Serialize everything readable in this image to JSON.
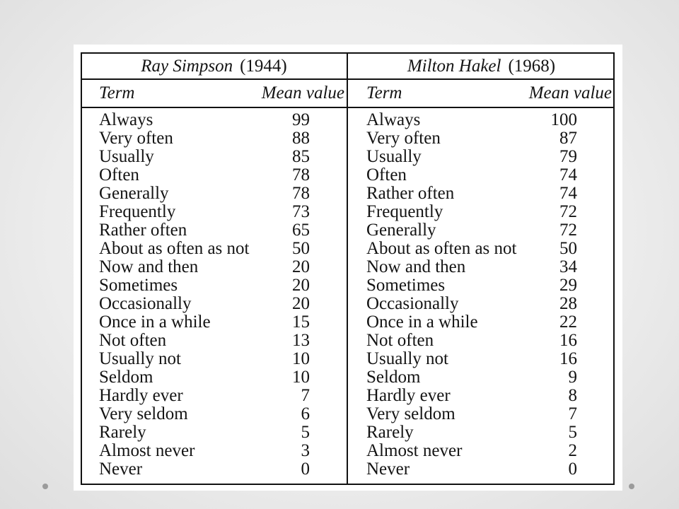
{
  "tables": [
    {
      "author": "Ray Simpson",
      "year": "(1944)",
      "term_header": "Term",
      "value_header": "Mean value",
      "rows": [
        {
          "term": "Always",
          "value": "99"
        },
        {
          "term": "Very often",
          "value": "88"
        },
        {
          "term": "Usually",
          "value": "85"
        },
        {
          "term": "Often",
          "value": "78"
        },
        {
          "term": "Generally",
          "value": "78"
        },
        {
          "term": "Frequently",
          "value": "73"
        },
        {
          "term": "Rather often",
          "value": "65"
        },
        {
          "term": "About as often as not",
          "value": "50"
        },
        {
          "term": "Now and then",
          "value": "20"
        },
        {
          "term": "Sometimes",
          "value": "20"
        },
        {
          "term": "Occasionally",
          "value": "20"
        },
        {
          "term": "Once in a while",
          "value": "15"
        },
        {
          "term": "Not often",
          "value": "13"
        },
        {
          "term": "Usually not",
          "value": "10"
        },
        {
          "term": "Seldom",
          "value": "10"
        },
        {
          "term": "Hardly ever",
          "value": "7"
        },
        {
          "term": "Very seldom",
          "value": "6"
        },
        {
          "term": "Rarely",
          "value": "5"
        },
        {
          "term": "Almost never",
          "value": "3"
        },
        {
          "term": "Never",
          "value": "0"
        }
      ]
    },
    {
      "author": "Milton Hakel",
      "year": "(1968)",
      "term_header": "Term",
      "value_header": "Mean value",
      "rows": [
        {
          "term": "Always",
          "value": "100"
        },
        {
          "term": "Very often",
          "value": "87"
        },
        {
          "term": "Usually",
          "value": "79"
        },
        {
          "term": "Often",
          "value": "74"
        },
        {
          "term": "Rather often",
          "value": "74"
        },
        {
          "term": "Frequently",
          "value": "72"
        },
        {
          "term": "Generally",
          "value": "72"
        },
        {
          "term": "About as often as not",
          "value": "50"
        },
        {
          "term": "Now and then",
          "value": "34"
        },
        {
          "term": "Sometimes",
          "value": "29"
        },
        {
          "term": "Occasionally",
          "value": "28"
        },
        {
          "term": "Once in a while",
          "value": "22"
        },
        {
          "term": "Not often",
          "value": "16"
        },
        {
          "term": "Usually not",
          "value": "16"
        },
        {
          "term": "Seldom",
          "value": "9"
        },
        {
          "term": "Hardly ever",
          "value": "8"
        },
        {
          "term": "Very seldom",
          "value": "7"
        },
        {
          "term": "Rarely",
          "value": "5"
        },
        {
          "term": "Almost never",
          "value": "2"
        },
        {
          "term": "Never",
          "value": "0"
        }
      ]
    }
  ]
}
